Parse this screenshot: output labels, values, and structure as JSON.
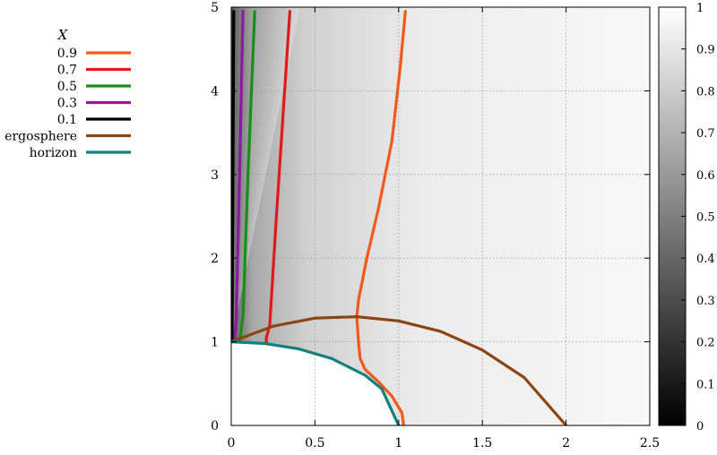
{
  "chart_data": {
    "type": "line",
    "title": "",
    "xlabel": "",
    "ylabel": "",
    "xlim": [
      0,
      2.5
    ],
    "ylim": [
      0,
      5
    ],
    "x_ticks": [
      "0",
      "0.5",
      "1",
      "1.5",
      "2",
      "2.5"
    ],
    "y_ticks": [
      "0",
      "1",
      "2",
      "3",
      "4",
      "5"
    ],
    "grid": true,
    "legend": {
      "title": "X",
      "placement": "outside-left"
    },
    "background_heatmap": {
      "value_range": [
        0,
        1
      ],
      "colormap": "gray"
    },
    "colorbar": {
      "range": [
        0,
        1
      ],
      "ticks": [
        "0",
        "0.1",
        "0.2",
        "0.3",
        "0.4",
        "0.5",
        "0.6",
        "0.7",
        "0.8",
        "0.9",
        "1"
      ]
    },
    "series": [
      {
        "name": "0.9",
        "color": "#f05a1e",
        "x": [
          1.03,
          1.02,
          0.96,
          0.88,
          0.8,
          0.77,
          0.76,
          0.75,
          0.76,
          0.81,
          0.88,
          0.96,
          1.01,
          1.04
        ],
        "y": [
          0,
          0.15,
          0.35,
          0.52,
          0.67,
          0.8,
          1.0,
          1.3,
          1.5,
          2.0,
          2.6,
          3.4,
          4.3,
          4.95
        ]
      },
      {
        "name": "0.7",
        "color": "#e01919",
        "x": [
          0.21,
          0.21,
          0.23,
          0.27,
          0.35
        ],
        "y": [
          1.0,
          1.05,
          1.2,
          2.5,
          4.95
        ]
      },
      {
        "name": "0.5",
        "color": "#1a8c1a",
        "x": [
          0.05,
          0.07,
          0.1,
          0.14
        ],
        "y": [
          1.0,
          1.3,
          3.0,
          4.95
        ]
      },
      {
        "name": "0.3",
        "color": "#8b1a9e",
        "x": [
          0.02,
          0.03,
          0.05,
          0.07
        ],
        "y": [
          1.0,
          1.3,
          3.0,
          4.95
        ]
      },
      {
        "name": "0.1",
        "color": "#000000",
        "x": [
          0.005,
          0.01,
          0.015
        ],
        "y": [
          1.0,
          3.0,
          4.95
        ]
      },
      {
        "name": "ergosphere",
        "color": "#8b4513",
        "x": [
          0,
          0.25,
          0.5,
          0.75,
          1.0,
          1.25,
          1.5,
          1.75,
          2.0
        ],
        "y": [
          1.0,
          1.186,
          1.283,
          1.3,
          1.249,
          1.125,
          0.901,
          0.573,
          0
        ]
      },
      {
        "name": "horizon",
        "color": "#12807d",
        "x": [
          0,
          0.2,
          0.4,
          0.6,
          0.8,
          0.9,
          1.0
        ],
        "y": [
          1.0,
          0.98,
          0.917,
          0.8,
          0.6,
          0.436,
          0
        ]
      }
    ]
  }
}
